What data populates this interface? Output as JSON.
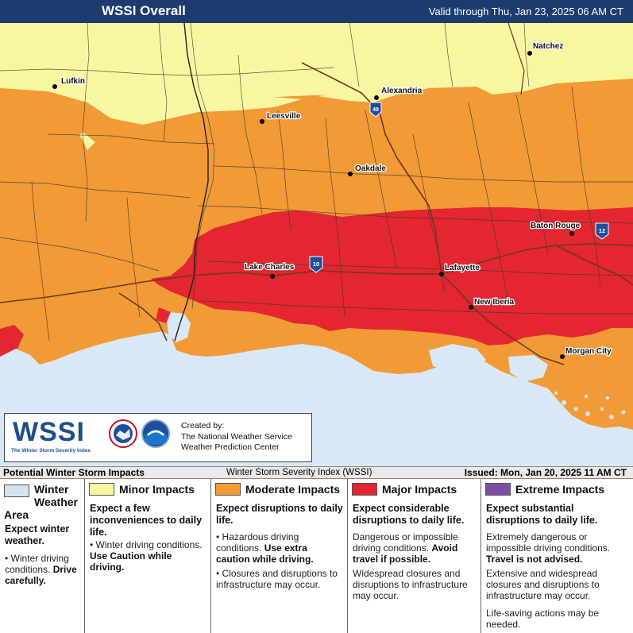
{
  "header": {
    "title": "WSSI Overall",
    "valid": "Valid through Thu, Jan 23, 2025 06 AM CT"
  },
  "colors": {
    "winter": "#d6e3ef",
    "minor": "#f9f6a2",
    "moderate": "#f29a36",
    "major": "#e3262f",
    "extreme": "#7a4fa3",
    "water": "#d8e8f7",
    "header": "#1d3b6e"
  },
  "cities": [
    {
      "name": "Natchez"
    },
    {
      "name": "Lufkin"
    },
    {
      "name": "Alexandria"
    },
    {
      "name": "Leesville"
    },
    {
      "name": "Oakdale"
    },
    {
      "name": "Baton Rouge"
    },
    {
      "name": "Lake Charles"
    },
    {
      "name": "Lafayette"
    },
    {
      "name": "New Iberia"
    },
    {
      "name": "Morgan City"
    }
  ],
  "highways": [
    {
      "name": "49"
    },
    {
      "name": "10"
    },
    {
      "name": "12"
    }
  ],
  "logo": {
    "name": "WSSI",
    "tagline": "The Winter Storm Severity Index",
    "created_lines": [
      "Created by:",
      "The National Weather Service",
      "Weather Prediction Center"
    ]
  },
  "legend_strip": {
    "left": "Potential Winter Storm Impacts",
    "middle": "Winter Storm Severity Index (WSSI)",
    "right": "Issued: Mon, Jan 20, 2025 11 AM CT"
  },
  "legend": [
    {
      "title": "Winter Weather Area",
      "summary": "Expect winter weather.",
      "items": [
        {
          "text": "Winter driving conditions.",
          "bold": "Drive carefully."
        }
      ]
    },
    {
      "title": "Minor Impacts",
      "summary": "Expect a few inconveniences to daily life.",
      "items": [
        {
          "text": "Winter driving conditions.",
          "bold": "Use Caution while driving."
        }
      ]
    },
    {
      "title": "Moderate Impacts",
      "summary": "Expect disruptions to daily life.",
      "items": [
        {
          "text": "Hazardous driving conditions.",
          "bold": "Use extra caution while driving."
        },
        {
          "text": "Closures and disruptions to infrastructure may occur.",
          "bold": ""
        }
      ]
    },
    {
      "title": "Major Impacts",
      "summary": "Expect considerable disruptions to daily life.",
      "items": [
        {
          "text": "Dangerous or impossible driving conditions.",
          "bold": "Avoid travel if possible."
        },
        {
          "text": "Widespread closures and disruptions to infrastructure may occur.",
          "bold": ""
        }
      ]
    },
    {
      "title": "Extreme Impacts",
      "summary": "Expect substantial disruptions to daily life.",
      "items": [
        {
          "text": "Extremely dangerous or impossible driving conditions.",
          "bold": "Travel is not advised."
        },
        {
          "text": "Extensive and widespread closures and disruptions to infrastructure may occur.",
          "bold": ""
        },
        {
          "text": "Life-saving actions may be needed.",
          "bold": ""
        }
      ]
    }
  ]
}
